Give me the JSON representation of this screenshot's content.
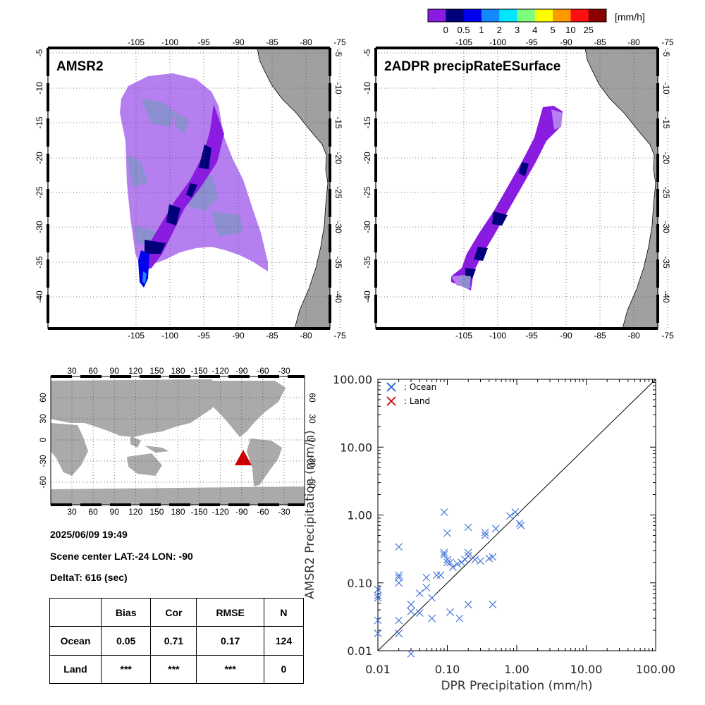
{
  "colorbar": {
    "unit": "[mm/h]",
    "colors": [
      "#8a1be0",
      "#00007a",
      "#0000ee",
      "#1488ff",
      "#00e6ff",
      "#7dff7d",
      "#ffff00",
      "#ff9900",
      "#ff1010",
      "#8b0000"
    ],
    "labels": [
      "0",
      "0.5",
      "1",
      "2",
      "3",
      "4",
      "5",
      "10",
      "25"
    ]
  },
  "map_axes": {
    "lon_ticks": [
      "-105",
      "-100",
      "-95",
      "-90",
      "-85",
      "-80",
      "-75"
    ],
    "lat_ticks": [
      "-5",
      "-10",
      "-15",
      "-20",
      "-25",
      "-30",
      "-35",
      "-40"
    ]
  },
  "panel_amsr2": {
    "title": "AMSR2"
  },
  "panel_dpr": {
    "title": "2ADPR precipRateESurface"
  },
  "world_map": {
    "lon_ticks": [
      "30",
      "60",
      "90",
      "120",
      "150",
      "180",
      "-150",
      "-120",
      "-90",
      "-60",
      "-30"
    ],
    "lat_ticks": [
      "60",
      "30",
      "0",
      "-30",
      "-60"
    ],
    "land_color": "#aaaaaa",
    "marker_color": "#cc0000"
  },
  "scene": {
    "datetime": "2025/06/09 19:49",
    "center": "Scene center LAT:-24   LON: -90",
    "delta": "DeltaT:  616 (sec)"
  },
  "stats": {
    "headers": [
      "Bias",
      "Cor",
      "RMSE",
      "N"
    ],
    "rows": [
      {
        "label": "Ocean",
        "values": [
          "0.05",
          "0.71",
          "0.17",
          "124"
        ]
      },
      {
        "label": "Land",
        "values": [
          "***",
          "***",
          "***",
          "0"
        ]
      }
    ]
  },
  "chart_data": {
    "type": "scatter",
    "xlabel": "DPR Precipitation (mm/h)",
    "ylabel": "AMSR2 Precipitation (mm/h)",
    "xscale": "log",
    "yscale": "log",
    "xlim": [
      0.01,
      100
    ],
    "ylim": [
      0.01,
      100
    ],
    "tick_labels": [
      "0.01",
      "0.10",
      "1.00",
      "10.00",
      "100.00"
    ],
    "legend": [
      {
        "label": ": Ocean",
        "color": "#1f5fd0"
      },
      {
        "label": ": Land",
        "color": "#cc0000"
      }
    ],
    "legend_position": "top-left",
    "reference_line": "1:1",
    "series": [
      {
        "name": "Ocean",
        "color": "#3a6fd8",
        "points": [
          [
            0.01,
            0.08
          ],
          [
            0.01,
            0.065
          ],
          [
            0.01,
            0.06
          ],
          [
            0.01,
            0.028
          ],
          [
            0.01,
            0.018
          ],
          [
            0.02,
            0.34
          ],
          [
            0.02,
            0.13
          ],
          [
            0.02,
            0.12
          ],
          [
            0.02,
            0.1
          ],
          [
            0.02,
            0.028
          ],
          [
            0.02,
            0.018
          ],
          [
            0.03,
            0.048
          ],
          [
            0.03,
            0.038
          ],
          [
            0.03,
            0.009
          ],
          [
            0.04,
            0.07
          ],
          [
            0.04,
            0.036
          ],
          [
            0.05,
            0.12
          ],
          [
            0.05,
            0.085
          ],
          [
            0.06,
            0.06
          ],
          [
            0.06,
            0.03
          ],
          [
            0.07,
            0.13
          ],
          [
            0.08,
            0.13
          ],
          [
            0.09,
            1.1
          ],
          [
            0.09,
            0.28
          ],
          [
            0.09,
            0.26
          ],
          [
            0.1,
            0.54
          ],
          [
            0.1,
            0.22
          ],
          [
            0.1,
            0.2
          ],
          [
            0.11,
            0.2
          ],
          [
            0.11,
            0.037
          ],
          [
            0.12,
            0.17
          ],
          [
            0.14,
            0.19
          ],
          [
            0.15,
            0.03
          ],
          [
            0.16,
            0.2
          ],
          [
            0.18,
            0.22
          ],
          [
            0.2,
            0.66
          ],
          [
            0.2,
            0.28
          ],
          [
            0.2,
            0.25
          ],
          [
            0.2,
            0.048
          ],
          [
            0.25,
            0.22
          ],
          [
            0.3,
            0.21
          ],
          [
            0.35,
            0.55
          ],
          [
            0.35,
            0.5
          ],
          [
            0.4,
            0.23
          ],
          [
            0.45,
            0.24
          ],
          [
            0.45,
            0.048
          ],
          [
            0.5,
            0.63
          ],
          [
            0.8,
            0.97
          ],
          [
            0.95,
            1.1
          ],
          [
            1.1,
            0.75
          ],
          [
            1.15,
            0.7
          ]
        ]
      },
      {
        "name": "Land",
        "color": "#cc0000",
        "points": []
      }
    ]
  }
}
